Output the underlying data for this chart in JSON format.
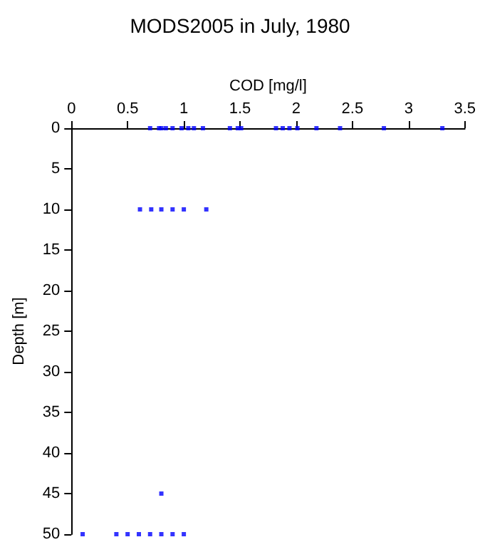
{
  "chart_data": {
    "type": "scatter",
    "title": "MODS2005 in July, 1980",
    "xlabel": "COD [mg/l]",
    "ylabel": "Depth [m]",
    "series": [
      {
        "color": "#0000ff",
        "x": [
          0.7,
          0.78,
          0.8,
          0.84,
          0.9,
          0.98,
          1.04,
          1.09,
          1.17,
          1.41,
          1.48,
          1.51,
          1.82,
          1.88,
          1.94,
          2.01,
          2.18,
          2.39,
          2.78,
          3.3,
          0.61,
          0.71,
          0.8,
          0.9,
          1.0,
          1.2,
          0.8,
          0.1,
          0.4,
          0.5,
          0.6,
          0.7,
          0.8,
          0.9,
          1.0
        ],
        "values": [
          0,
          0,
          0,
          0,
          0,
          0,
          0,
          0,
          0,
          0,
          0,
          0,
          0,
          0,
          0,
          0,
          0,
          0,
          0,
          0,
          10,
          10,
          10,
          10,
          10,
          10,
          45,
          50,
          50,
          50,
          50,
          50,
          50,
          50,
          50
        ]
      }
    ],
    "xlim": [
      0,
      3.5
    ],
    "xticks": [
      0,
      0.5,
      1,
      1.5,
      2,
      2.5,
      3,
      3.5
    ],
    "ylim": [
      50,
      0
    ],
    "yticks": [
      0,
      5,
      10,
      15,
      20,
      25,
      30,
      35,
      40,
      45,
      50
    ],
    "grid": false,
    "marker": "square"
  }
}
